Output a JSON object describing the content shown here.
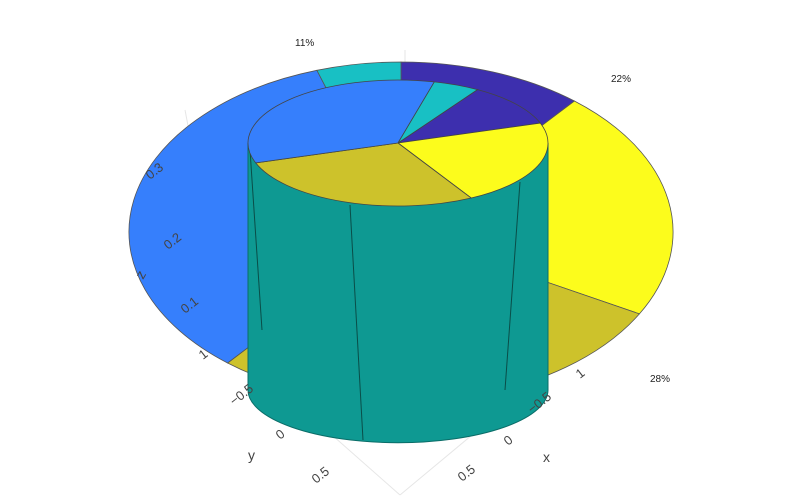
{
  "chart_data": {
    "type": "pie",
    "variant": "3d-pie-with-center-cylinder",
    "title": "",
    "slices": [
      {
        "percent_label": "11%",
        "value": 0.11,
        "color": "#3d2fae"
      },
      {
        "percent_label": "22%",
        "value": 0.22,
        "color": "#fcfc1c"
      },
      {
        "percent_label": "28%",
        "value": 0.28,
        "color": "#cdc22b"
      },
      {
        "percent_label": "",
        "value": 0.34,
        "color": "#367ffc"
      },
      {
        "percent_label": "",
        "value": 0.05,
        "color": "#18c0c4"
      }
    ],
    "cylinder_color": "#0e9992",
    "axes": {
      "x": {
        "title": "x",
        "ticks": [
          "−0.5",
          "0",
          "0.5",
          "1"
        ]
      },
      "y": {
        "title": "y",
        "ticks": [
          "−0.5",
          "0",
          "0.5",
          "1"
        ]
      },
      "z": {
        "title": "z",
        "ticks": [
          "0.1",
          "0.2",
          "0.3"
        ]
      }
    },
    "grid": true,
    "legend": "none"
  }
}
